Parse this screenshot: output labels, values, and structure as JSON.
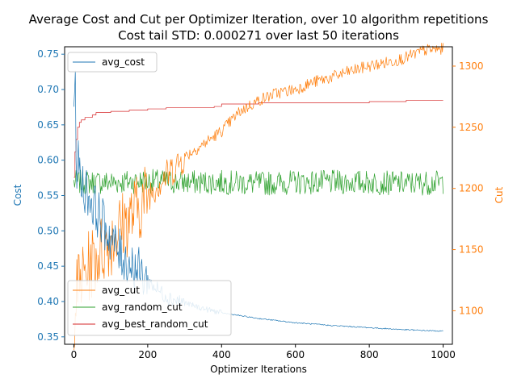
{
  "chart_data": {
    "type": "line",
    "title": "Average Cost and Cut per Optimizer Iteration, over 10 algorithm repetitions",
    "subtitle": "Cost tail STD: 0.000271 over last 50 iterations",
    "xlabel": "Optimizer Iterations",
    "ylabel_left": "Cost",
    "ylabel_right": "Cut",
    "xlim": [
      -25,
      1025
    ],
    "ylim_left": [
      0.3395,
      0.7605
    ],
    "ylim_right": [
      1072.6,
      1315.8
    ],
    "x_ticks": [
      "0",
      "200",
      "400",
      "600",
      "800",
      "1000"
    ],
    "y_left_ticks": [
      "0.35",
      "0.40",
      "0.45",
      "0.50",
      "0.55",
      "0.60",
      "0.65",
      "0.70",
      "0.75"
    ],
    "y_right_ticks": [
      "1100",
      "1150",
      "1200",
      "1250",
      "1300"
    ],
    "colors": {
      "avg_cost": "#1f77b4",
      "avg_cut": "#ff7f0e",
      "avg_random_cut": "#2ca02c",
      "avg_best_random_cut": "#d62728",
      "left_axis": "#1f77b4",
      "right_axis": "#ff7f0e"
    },
    "legend_upper": {
      "position": "upper-left",
      "entries": [
        "avg_cost"
      ]
    },
    "legend_lower": {
      "position": "lower-left",
      "entries": [
        "avg_cut",
        "avg_random_cut",
        "avg_best_random_cut"
      ]
    },
    "series": [
      {
        "name": "avg_cost",
        "axis": "left",
        "x": [
          0,
          2,
          5,
          10,
          20,
          40,
          60,
          80,
          100,
          120,
          150,
          180,
          200,
          230,
          260,
          300,
          350,
          400,
          450,
          500,
          550,
          600,
          700,
          800,
          900,
          1000
        ],
        "values": [
          0.68,
          0.75,
          0.64,
          0.6,
          0.57,
          0.55,
          0.53,
          0.51,
          0.49,
          0.47,
          0.455,
          0.44,
          0.43,
          0.415,
          0.405,
          0.398,
          0.39,
          0.384,
          0.38,
          0.376,
          0.373,
          0.37,
          0.366,
          0.363,
          0.36,
          0.358
        ]
      },
      {
        "name": "avg_cut",
        "axis": "right",
        "x": [
          0,
          10,
          25,
          50,
          75,
          100,
          125,
          150,
          175,
          200,
          225,
          250,
          275,
          300,
          350,
          400,
          450,
          500,
          550,
          600,
          650,
          700,
          750,
          800,
          850,
          900,
          950,
          1000
        ],
        "values": [
          1095,
          1120,
          1128,
          1140,
          1150,
          1158,
          1168,
          1175,
          1185,
          1195,
          1203,
          1210,
          1218,
          1226,
          1236,
          1247,
          1263,
          1272,
          1278,
          1281,
          1287,
          1291,
          1296,
          1300,
          1303,
          1307,
          1313,
          1314
        ]
      },
      {
        "name": "avg_random_cut",
        "axis": "right",
        "x": [
          0,
          100,
          200,
          300,
          400,
          500,
          600,
          700,
          800,
          900,
          1000
        ],
        "values": [
          1205,
          1205,
          1206,
          1205,
          1205,
          1204,
          1205,
          1205,
          1205,
          1204,
          1205
        ]
      },
      {
        "name": "avg_best_random_cut",
        "axis": "right",
        "x": [
          0,
          3,
          6,
          10,
          15,
          20,
          30,
          50,
          60,
          100,
          150,
          200,
          250,
          300,
          380,
          400,
          500,
          600,
          700,
          800,
          900,
          1000
        ],
        "values": [
          1209,
          1230,
          1240,
          1250,
          1254,
          1256,
          1258,
          1260,
          1262,
          1263,
          1264,
          1265,
          1266,
          1266,
          1267,
          1269,
          1270,
          1270,
          1270,
          1271,
          1272,
          1272
        ]
      }
    ]
  }
}
